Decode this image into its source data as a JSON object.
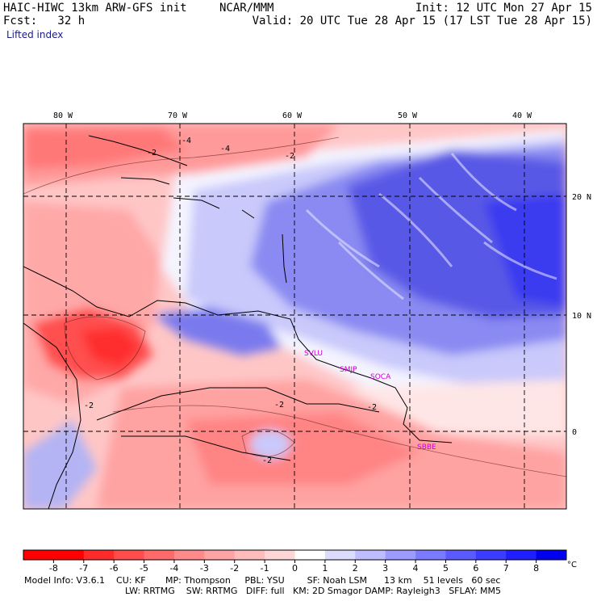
{
  "header": {
    "model_title": "HAIC-HIWC 13km ARW-GFS init",
    "org": "NCAR/MMM",
    "init": "Init: 12 UTC Mon 27 Apr 15",
    "fcst": "Fcst:   32 h",
    "valid": "Valid: 20 UTC Tue 28 Apr 15 (17 LST Tue 28 Apr 15)",
    "field_name": "Lifted index"
  },
  "map": {
    "lon_labels": [
      "80 W",
      "70 W",
      "60 W",
      "50 W",
      "40 W"
    ],
    "lat_labels": [
      "20 N",
      "10 N",
      "0"
    ],
    "stations": [
      {
        "code": "SVLU"
      },
      {
        "code": "SMJP"
      },
      {
        "code": "SOCA"
      },
      {
        "code": "SBBE"
      }
    ],
    "contour_labels": [
      "-2",
      "-4",
      "-4",
      "-2",
      "-2",
      "-2",
      "-2",
      "-2"
    ]
  },
  "colorbar": {
    "ticks": [
      "-8",
      "-7",
      "-6",
      "-5",
      "-4",
      "-3",
      "-2",
      "-1",
      "0",
      "1",
      "2",
      "3",
      "4",
      "5",
      "6",
      "7",
      "8"
    ],
    "unit": "°C",
    "colors": [
      "#ff0000",
      "#ff2b2b",
      "#ff4c4c",
      "#ff6a6a",
      "#ff8a8a",
      "#ffa4a4",
      "#ffbcbc",
      "#ffd6d6",
      "#ffffff",
      "#dcdcff",
      "#bdbdff",
      "#9c9cff",
      "#7b7bff",
      "#5a5aff",
      "#3c3cff",
      "#1e1eff",
      "#0000f0"
    ]
  },
  "footer": {
    "line1": "Model Info: V3.6.1    CU: KF       MP: Thompson     PBL: YSU        SF: Noah LSM      13 km    51 levels   60 sec",
    "line2": "LW: RRTMG    SW: RRTMG   DIFF: full   KM: 2D Smagor DAMP: Rayleigh3   SFLAY: MM5"
  }
}
